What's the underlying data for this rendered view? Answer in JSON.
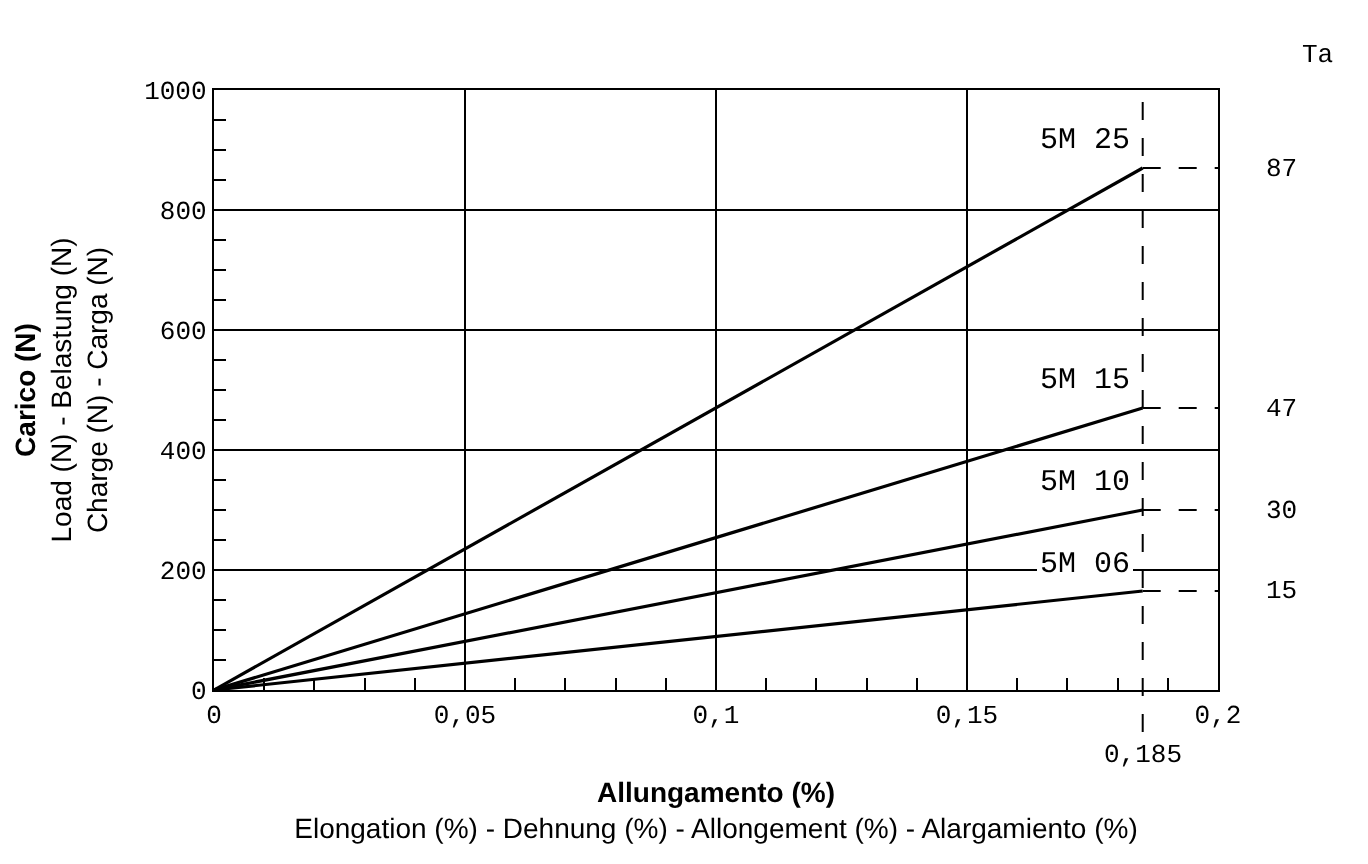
{
  "chart_data": {
    "type": "line",
    "xlabel": "Allungamento (%)\nElongation (%) - Dehnung (%) - Allongement (%) - Alargamiento (%)",
    "ylabel": "Carico (N)\nLoad (N) - Belastung (N)\nCharge (N) - Carga (N)",
    "x": [
      0,
      0.185
    ],
    "series": [
      {
        "name": "5M 25",
        "color": "#000000",
        "values": [
          0,
          870
        ]
      },
      {
        "name": "5M 15",
        "color": "#000000",
        "values": [
          0,
          470
        ]
      },
      {
        "name": "5M 10",
        "color": "#000000",
        "values": [
          0,
          300
        ]
      },
      {
        "name": "5M 06",
        "color": "#000000",
        "values": [
          0,
          165
        ]
      }
    ],
    "xlim": [
      0,
      0.2
    ],
    "ylim": [
      0,
      1000
    ],
    "xticks": [
      0,
      {
        "value": 0.05,
        "label": "0,05"
      },
      {
        "value": 0.1,
        "label": "0,1"
      },
      {
        "value": 0.15,
        "label": "0,15"
      },
      {
        "value": 0.2,
        "label": "0,2"
      },
      {
        "value": 0.01,
        "label": null
      },
      {
        "value": 0.02,
        "label": null
      },
      {
        "value": 0.03,
        "label": null
      },
      {
        "value": 0.04,
        "label": null
      },
      {
        "value": 0.06,
        "label": null
      },
      {
        "value": 0.07,
        "label": null
      },
      {
        "value": 0.08,
        "label": null
      },
      {
        "value": 0.09,
        "label": null
      },
      {
        "value": 0.11,
        "label": null
      },
      {
        "value": 0.12,
        "label": null
      },
      {
        "value": 0.13,
        "label": null
      },
      {
        "value": 0.14,
        "label": null
      },
      {
        "value": 0.16,
        "label": null
      },
      {
        "value": 0.17,
        "label": null
      },
      {
        "value": 0.18,
        "label": null
      },
      {
        "value": 0.19,
        "label": null
      }
    ],
    "yticks": [
      0,
      200,
      400,
      600,
      800,
      1000,
      {
        "value": 50,
        "label": null
      },
      {
        "value": 100,
        "label": null
      },
      {
        "value": 150,
        "label": null
      },
      {
        "value": 250,
        "label": null
      },
      {
        "value": 300,
        "label": null
      },
      {
        "value": 350,
        "label": null
      },
      {
        "value": 450,
        "label": null
      },
      {
        "value": 500,
        "label": null
      },
      {
        "value": 550,
        "label": null
      },
      {
        "value": 650,
        "label": null
      },
      {
        "value": 700,
        "label": null
      },
      {
        "value": 750,
        "label": null
      },
      {
        "value": 850,
        "label": null
      },
      {
        "value": 900,
        "label": null
      },
      {
        "value": 950,
        "label": null
      }
    ],
    "grid": true,
    "legend": false,
    "ref_lines": [
      {
        "axis": "x",
        "value": 0.185,
        "label": "0,185",
        "line_style": "dashed"
      }
    ],
    "annotations": [
      "Ta",
      "87",
      "47",
      "30",
      "15"
    ]
  }
}
